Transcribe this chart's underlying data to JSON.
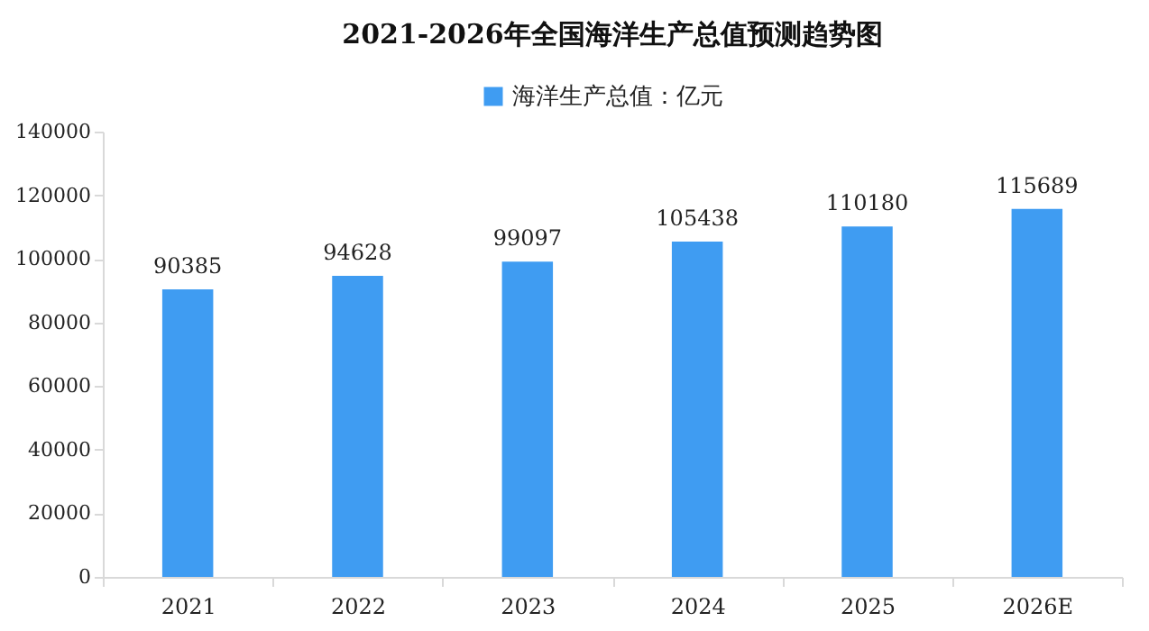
{
  "chart_data": {
    "type": "bar",
    "title": "2021-2026年全国海洋生产总值预测趋势图",
    "categories": [
      "2021",
      "2022",
      "2023",
      "2024",
      "2025",
      "2026E"
    ],
    "series": [
      {
        "name": "海洋生产总值：亿元",
        "color": "#3f9cf2",
        "values": [
          90385,
          94628,
          99097,
          105438,
          110180,
          115689
        ]
      }
    ],
    "ylim": [
      0,
      140000
    ],
    "yticks": [
      0,
      20000,
      40000,
      60000,
      80000,
      100000,
      120000,
      140000
    ],
    "data_labels": true,
    "legend": "top",
    "grid": false
  }
}
